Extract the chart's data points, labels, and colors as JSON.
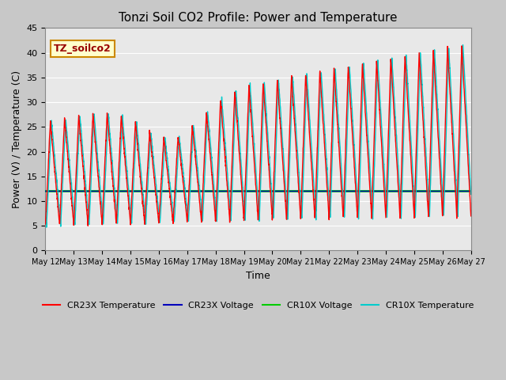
{
  "title": "Tonzi Soil CO2 Profile: Power and Temperature",
  "xlabel": "Time",
  "ylabel": "Power (V) / Temperature (C)",
  "ylim": [
    0,
    45
  ],
  "xtick_labels": [
    "May 12",
    "May 13",
    "May 14",
    "May 15",
    "May 16",
    "May 17",
    "May 18",
    "May 19",
    "May 20",
    "May 21",
    "May 22",
    "May 23",
    "May 24",
    "May 25",
    "May 26",
    "May 27"
  ],
  "cr23x_temp_color": "#ff0000",
  "cr23x_volt_color": "#0000bb",
  "cr10x_volt_color": "#00cc00",
  "cr10x_temp_color": "#00cccc",
  "plot_bg_color": "#e8e8e8",
  "fig_bg_color": "#c8c8c8",
  "annotation_text": "TZ_soilco2",
  "annotation_bg": "#ffffcc",
  "annotation_border": "#cc8800",
  "legend_entries": [
    "CR23X Temperature",
    "CR23X Voltage",
    "CR10X Voltage",
    "CR10X Temperature"
  ],
  "cr10x_voltage_value": 12.0,
  "cr23x_voltage_value": 12.0
}
